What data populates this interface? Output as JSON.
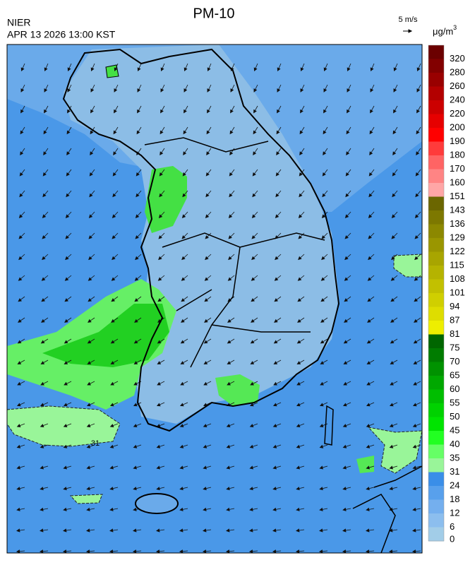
{
  "header": {
    "title": "PM-10",
    "agency": "NIER",
    "timestamp": "APR 13 2026 13:00 KST",
    "wind_scale": "5 m/s"
  },
  "legend": {
    "unit": "μg/m",
    "unit_exponent": "3",
    "levels": [
      320,
      280,
      260,
      240,
      220,
      200,
      190,
      180,
      170,
      160,
      151,
      143,
      136,
      129,
      122,
      115,
      108,
      101,
      94,
      87,
      81,
      75,
      70,
      65,
      60,
      55,
      50,
      45,
      40,
      35,
      31,
      24,
      18,
      12,
      6,
      0
    ],
    "colors": [
      "#6b0000",
      "#820000",
      "#990000",
      "#b30000",
      "#cc0000",
      "#e60000",
      "#ff0000",
      "#ff3b3b",
      "#ff6464",
      "#ff8484",
      "#ffa6a6",
      "#6b6600",
      "#7d7800",
      "#8c8800",
      "#9a9600",
      "#a8a500",
      "#b5b300",
      "#c2c000",
      "#d0cf00",
      "#dedd00",
      "#eeee00",
      "#006600",
      "#007c00",
      "#009200",
      "#00a800",
      "#00be00",
      "#00d200",
      "#00e400",
      "#22ff22",
      "#66ff66",
      "#99f599",
      "#3a8ee8",
      "#58a0ec",
      "#74afee",
      "#8cbeee",
      "#a2cde8"
    ]
  },
  "map": {
    "contour_label": "31"
  }
}
